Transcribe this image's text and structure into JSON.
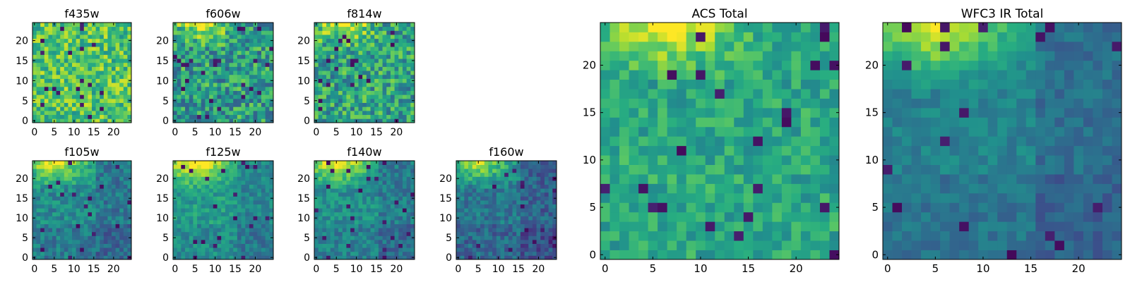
{
  "chart_data": [
    {
      "type": "heatmap",
      "title": "f435w",
      "colormap": "viridis",
      "grid": false,
      "xlim": [
        -0.5,
        24.5
      ],
      "ylim": [
        -0.5,
        24.5
      ],
      "xticks": [
        0,
        5,
        10,
        15,
        20
      ],
      "yticks": [
        0,
        5,
        10,
        15,
        20
      ],
      "width": 25,
      "height": 25,
      "pattern": "noisy-uniform",
      "level": 0.72,
      "spread": 0.22,
      "seed": 11
    },
    {
      "type": "heatmap",
      "title": "f606w",
      "colormap": "viridis",
      "grid": false,
      "xlim": [
        -0.5,
        24.5
      ],
      "ylim": [
        -0.5,
        24.5
      ],
      "xticks": [
        0,
        5,
        10,
        15,
        20
      ],
      "yticks": [
        0,
        5,
        10,
        15,
        20
      ],
      "width": 25,
      "height": 25,
      "pattern": "noisy-top-bright",
      "level": 0.55,
      "spread": 0.25,
      "seed": 23
    },
    {
      "type": "heatmap",
      "title": "f814w",
      "colormap": "viridis",
      "grid": false,
      "xlim": [
        -0.5,
        24.5
      ],
      "ylim": [
        -0.5,
        24.5
      ],
      "xticks": [
        0,
        5,
        10,
        15,
        20
      ],
      "yticks": [
        0,
        5,
        10,
        15,
        20
      ],
      "width": 25,
      "height": 25,
      "pattern": "noisy-top-bright",
      "level": 0.58,
      "spread": 0.24,
      "seed": 37
    },
    {
      "type": "heatmap",
      "title": "f105w",
      "colormap": "viridis",
      "grid": false,
      "xlim": [
        -0.5,
        24.5
      ],
      "ylim": [
        -0.5,
        24.5
      ],
      "xticks": [
        0,
        5,
        10,
        15,
        20
      ],
      "yticks": [
        0,
        5,
        10,
        15,
        20
      ],
      "width": 25,
      "height": 25,
      "pattern": "top-left-bright",
      "level": 0.48,
      "spread": 0.13,
      "seed": 41
    },
    {
      "type": "heatmap",
      "title": "f125w",
      "colormap": "viridis",
      "grid": false,
      "xlim": [
        -0.5,
        24.5
      ],
      "ylim": [
        -0.5,
        24.5
      ],
      "xticks": [
        0,
        5,
        10,
        15,
        20
      ],
      "yticks": [
        0,
        5,
        10,
        15,
        20
      ],
      "width": 25,
      "height": 25,
      "pattern": "top-left-bright",
      "level": 0.55,
      "spread": 0.12,
      "seed": 53
    },
    {
      "type": "heatmap",
      "title": "f140w",
      "colormap": "viridis",
      "grid": false,
      "xlim": [
        -0.5,
        24.5
      ],
      "ylim": [
        -0.5,
        24.5
      ],
      "xticks": [
        0,
        5,
        10,
        15,
        20
      ],
      "yticks": [
        0,
        5,
        10,
        15,
        20
      ],
      "width": 25,
      "height": 25,
      "pattern": "top-left-bright",
      "level": 0.5,
      "spread": 0.12,
      "seed": 67
    },
    {
      "type": "heatmap",
      "title": "f160w",
      "colormap": "viridis",
      "grid": false,
      "xlim": [
        -0.5,
        24.5
      ],
      "ylim": [
        -0.5,
        24.5
      ],
      "xticks": [
        0,
        5,
        10,
        15,
        20
      ],
      "yticks": [
        0,
        5,
        10,
        15,
        20
      ],
      "width": 25,
      "height": 25,
      "pattern": "top-left-bright",
      "level": 0.4,
      "spread": 0.13,
      "seed": 79
    },
    {
      "type": "heatmap",
      "title": "ACS Total",
      "colormap": "viridis",
      "grid": false,
      "xlim": [
        -0.5,
        24.5
      ],
      "ylim": [
        -0.5,
        24.5
      ],
      "xticks": [
        0,
        5,
        10,
        15,
        20
      ],
      "yticks": [
        0,
        5,
        10,
        15,
        20
      ],
      "width": 25,
      "height": 25,
      "pattern": "noisy-top-bright",
      "level": 0.6,
      "spread": 0.14,
      "seed": 89
    },
    {
      "type": "heatmap",
      "title": "WFC3 IR Total",
      "colormap": "viridis",
      "grid": false,
      "xlim": [
        -0.5,
        24.5
      ],
      "ylim": [
        -0.5,
        24.5
      ],
      "xticks": [
        0,
        5,
        10,
        15,
        20
      ],
      "yticks": [
        0,
        5,
        10,
        15,
        20
      ],
      "width": 25,
      "height": 25,
      "pattern": "top-left-bright",
      "level": 0.45,
      "spread": 0.08,
      "seed": 97
    }
  ]
}
